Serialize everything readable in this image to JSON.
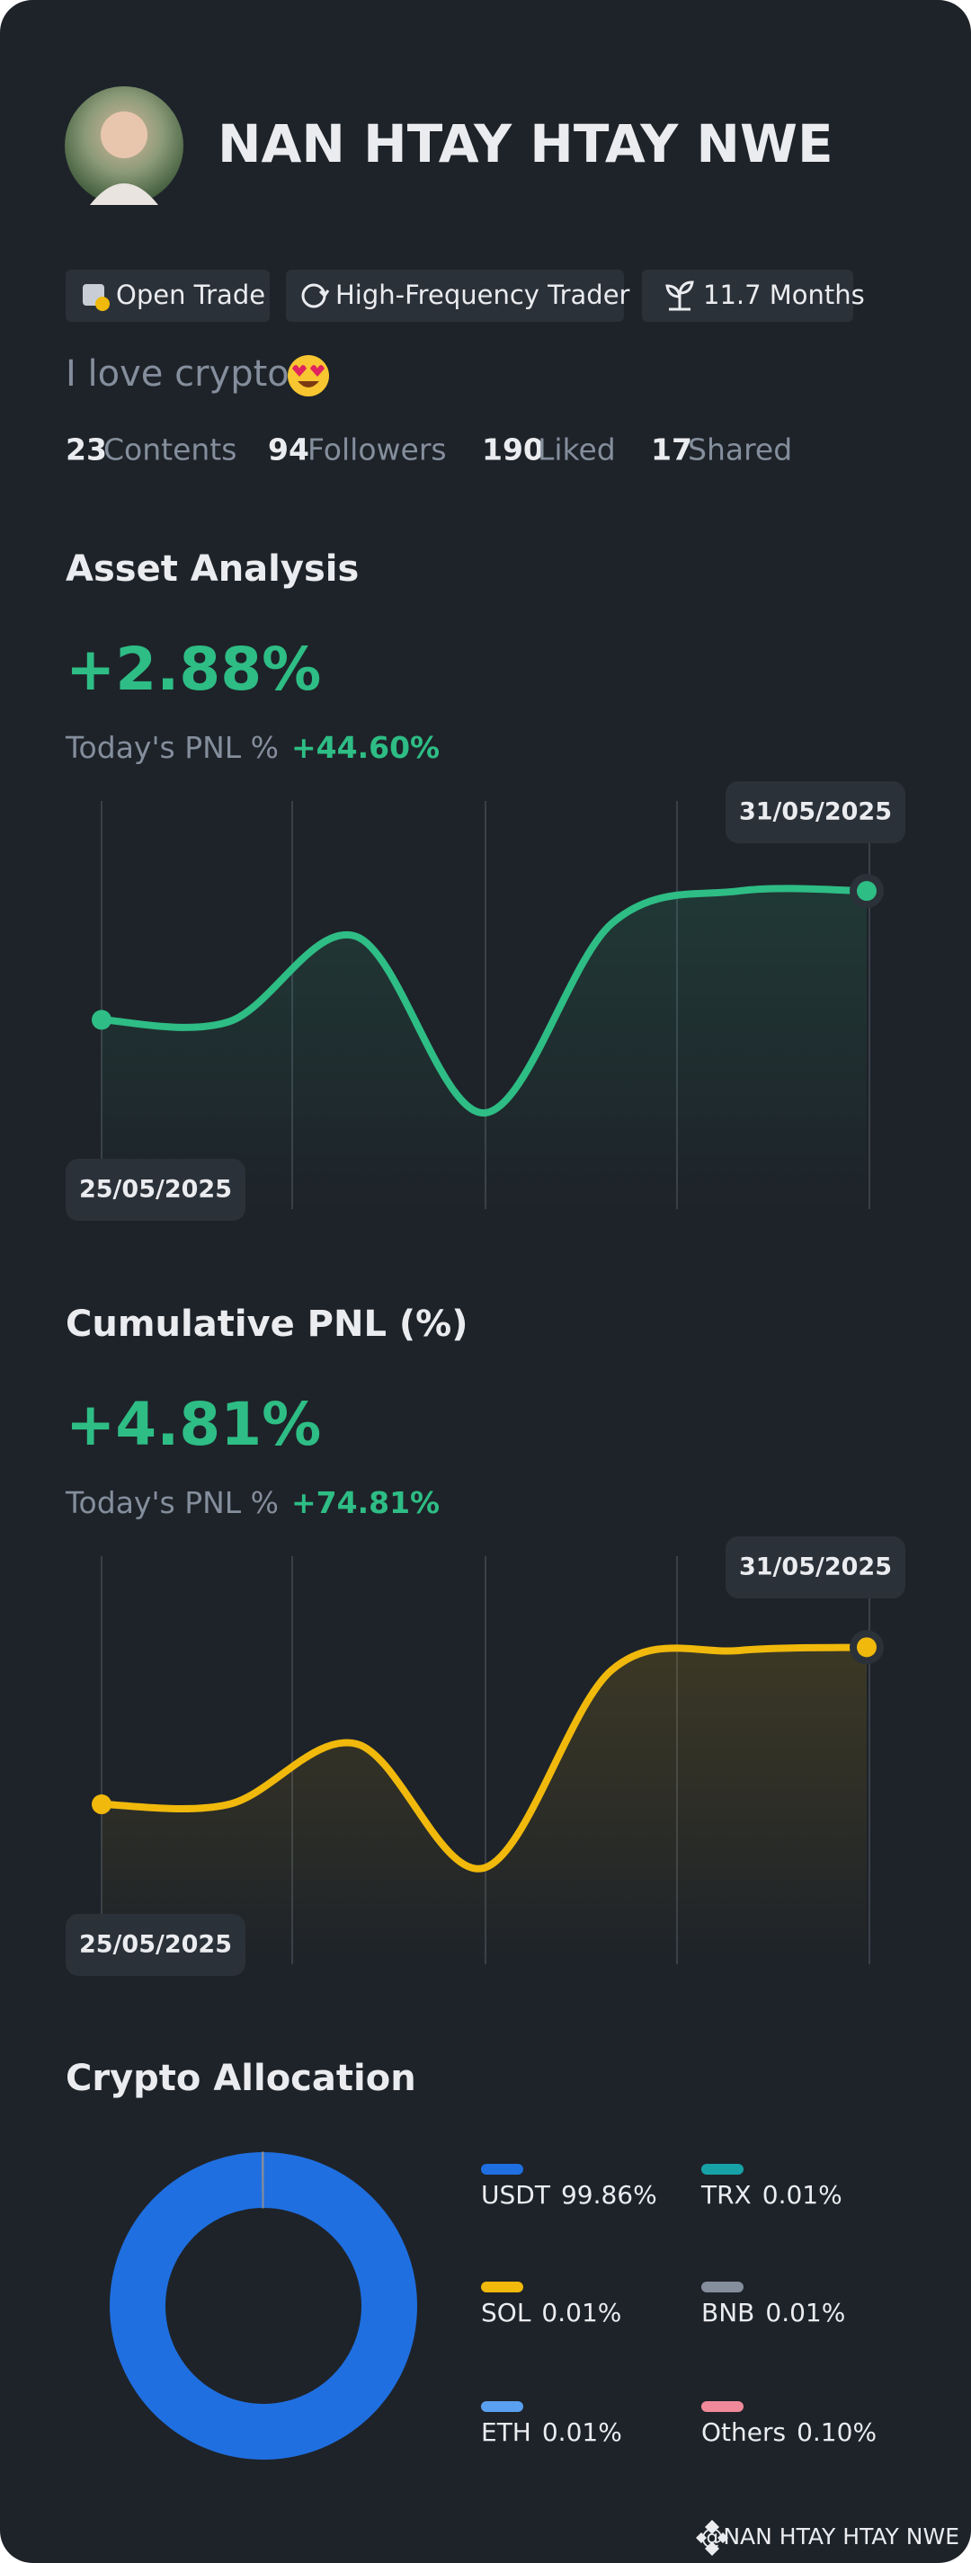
{
  "profile": {
    "name": "NAN HTAY HTAY NWE",
    "tags": [
      "Open Trade",
      "High-Frequency Trader",
      "11.7 Months"
    ],
    "bio": "I love crypto",
    "stats": [
      {
        "value": "23",
        "label": "Contents"
      },
      {
        "value": "94",
        "label": "Followers"
      },
      {
        "value": "190",
        "label": "Liked"
      },
      {
        "value": "17",
        "label": "Shared"
      }
    ]
  },
  "chart_data": [
    {
      "type": "line",
      "title": "Asset Analysis",
      "headline": "+2.88%",
      "pnl_label": "Today's PNL %",
      "pnl_value": "+44.60%",
      "categories": [
        "25/05/2025",
        null,
        null,
        null,
        null,
        null,
        "31/05/2025"
      ],
      "series": [
        {
          "color": "#2ebd85",
          "values": [
            0,
            -0.04,
            1.86,
            -2.08,
            2.15,
            2.88,
            2.88
          ]
        }
      ],
      "ylim": [
        -4.23,
        4.89
      ]
    },
    {
      "type": "line",
      "title": "Cumulative PNL (%)",
      "headline": "+4.81%",
      "pnl_label": "Today's PNL %",
      "pnl_value": "+74.81%",
      "categories": [
        "25/05/2025",
        null,
        null,
        null,
        null,
        null,
        "31/05/2025"
      ],
      "series": [
        {
          "color": "#f0b90b",
          "values": [
            0,
            0,
            1.85,
            -1.95,
            4.11,
            4.71,
            4.81
          ]
        }
      ],
      "ylim": [
        -4.9,
        7.6
      ]
    },
    {
      "type": "donut",
      "title": "Crypto Allocation",
      "categories": [
        "USDT",
        "TRX",
        "SOL",
        "BNB",
        "ETH",
        "Others"
      ],
      "values": [
        99.86,
        0.01,
        0.01,
        0.01,
        0.01,
        0.1
      ],
      "value_labels": [
        "99.86%",
        "0.01%",
        "0.01%",
        "0.01%",
        "0.01%",
        "0.10%"
      ],
      "colors": [
        "#1f6fe0",
        "#17a2a8",
        "#f0b90b",
        "#848e9c",
        "#5aa0f0",
        "#f08a9a"
      ]
    }
  ],
  "footer": "@NAN HTAY HTAY NWE"
}
